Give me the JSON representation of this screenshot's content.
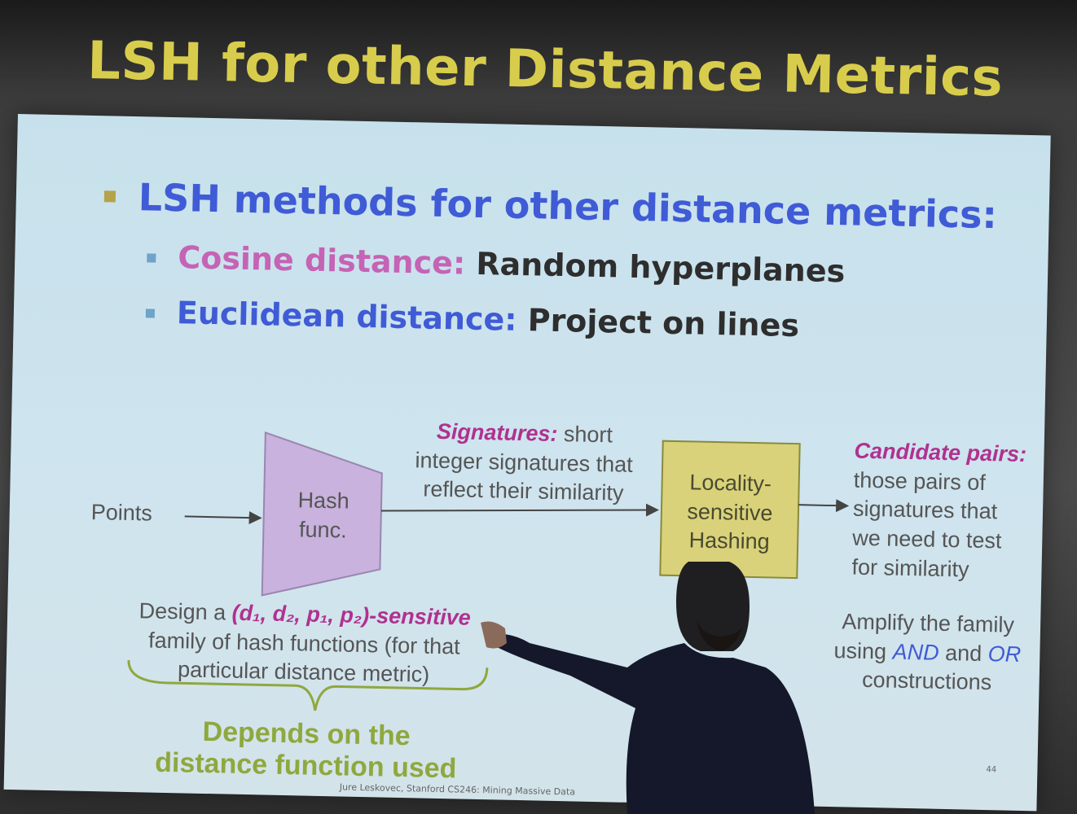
{
  "slide": {
    "title": "LSH for other Distance Metrics",
    "bullet_main": "LSH methods for other distance metrics:",
    "sub_bullets": [
      {
        "term": "Cosine distance:",
        "text": " Random hyperplanes"
      },
      {
        "term": "Euclidean distance:",
        "text": " Project on lines"
      }
    ]
  },
  "diagram": {
    "points_label": "Points",
    "hash_label_1": "Hash",
    "hash_label_2": "func.",
    "signatures_term": "Signatures:",
    "signatures_text_1": " short",
    "signatures_text_2": "integer signatures that",
    "signatures_text_3": "reflect their similarity",
    "lsh_label_1": "Locality-",
    "lsh_label_2": "sensitive",
    "lsh_label_3": "Hashing",
    "candidate_term": "Candidate pairs:",
    "candidate_text_1": "those pairs of",
    "candidate_text_2": "signatures that",
    "candidate_text_3": "we need to test",
    "candidate_text_4": "for similarity",
    "design_prefix": "Design a ",
    "design_sensitive": "(d₁, d₂, p₁, p₂)-sensitive",
    "design_line2": "family of hash functions (for that",
    "design_line3": "particular distance metric)",
    "amplify_line1": "Amplify the family",
    "amplify_using": "using ",
    "amplify_and": "AND",
    "amplify_mid": " and ",
    "amplify_or": "OR",
    "amplify_line3": "constructions",
    "depends_line1": "Depends on the",
    "depends_line2": "distance function used"
  },
  "footer": {
    "credit": "Jure Leskovec, Stanford CS246: Mining Massive Data",
    "page": "44"
  },
  "colors": {
    "title": "#d8cc4c",
    "bullet_blue": "#3f5bd6",
    "cosine_pink": "#c563b5",
    "hash_box": "#c9b2dd",
    "lsh_box": "#d9d27a",
    "green": "#8fa83e",
    "magenta": "#b0318f"
  }
}
